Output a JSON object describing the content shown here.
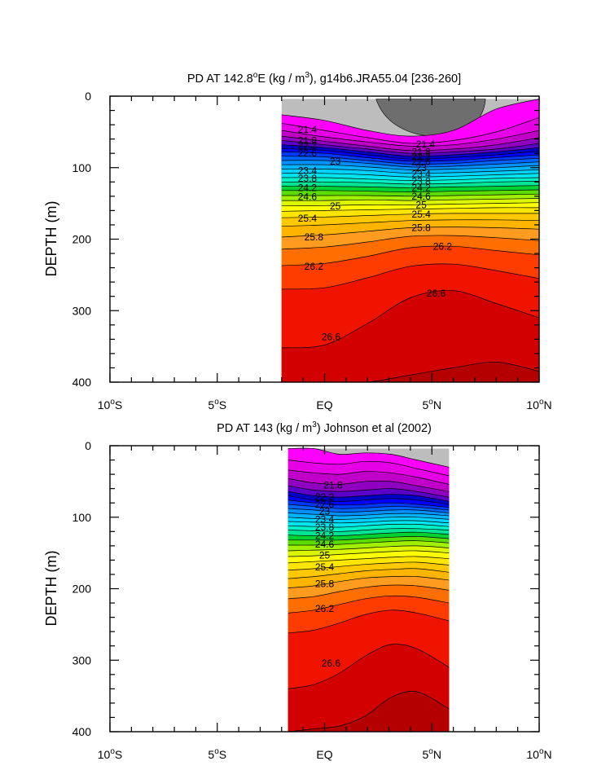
{
  "chart_data": [
    {
      "type": "heatmap",
      "title_pre": "PD AT 142.8",
      "title_sup": "o",
      "title_mid": "E (kg / m",
      "title_sup2": "3",
      "title_post": "), g14b6.JRA55.04 [236-260]",
      "ylabel": "DEPTH (m)",
      "xlim": [
        -10,
        10
      ],
      "ylim": [
        0,
        400
      ],
      "yticks": [
        "0",
        "100",
        "200",
        "300",
        "400"
      ],
      "xticks": [
        {
          "v": -10,
          "num": "10",
          "sup": "o",
          "hem": "S"
        },
        {
          "v": -5,
          "num": "5",
          "sup": "o",
          "hem": "S"
        },
        {
          "v": 0,
          "num": "EQ",
          "sup": "",
          "hem": ""
        },
        {
          "v": 5,
          "num": "5",
          "sup": "o",
          "hem": "N"
        },
        {
          "v": 10,
          "num": "10",
          "sup": "o",
          "hem": "N"
        }
      ],
      "lat_range": [
        -2,
        10
      ],
      "lat_points": [
        -2,
        0,
        2,
        4,
        6,
        8,
        10
      ],
      "isopycnals": [
        {
          "v": 21.0,
          "d": [
            4,
            4,
            4,
            4,
            4,
            4,
            4
          ]
        },
        {
          "v": 21.2,
          "d": [
            26,
            34,
            48,
            56,
            48,
            18,
            4
          ]
        },
        {
          "v": 21.4,
          "d": [
            38,
            48,
            58,
            66,
            62,
            50,
            30
          ]
        },
        {
          "v": 21.6,
          "d": [
            48,
            57,
            64,
            70,
            68,
            60,
            48
          ]
        },
        {
          "v": 21.8,
          "d": [
            56,
            63,
            70,
            76,
            74,
            68,
            58
          ]
        },
        {
          "v": 22.0,
          "d": [
            62,
            68,
            74,
            80,
            78,
            74,
            66
          ]
        },
        {
          "v": 22.2,
          "d": [
            68,
            72,
            78,
            84,
            82,
            78,
            72
          ]
        },
        {
          "v": 22.4,
          "d": [
            73,
            76,
            82,
            88,
            86,
            82,
            77
          ]
        },
        {
          "v": 22.6,
          "d": [
            78,
            80,
            86,
            91,
            90,
            86,
            82
          ]
        },
        {
          "v": 22.8,
          "d": [
            84,
            85,
            90,
            95,
            94,
            90,
            87
          ]
        },
        {
          "v": 23.0,
          "d": [
            90,
            90,
            94,
            99,
            98,
            95,
            92
          ]
        },
        {
          "v": 23.2,
          "d": [
            96,
            96,
            99,
            103,
            102,
            100,
            97
          ]
        },
        {
          "v": 23.4,
          "d": [
            102,
            102,
            104,
            108,
            107,
            105,
            103
          ]
        },
        {
          "v": 23.6,
          "d": [
            108,
            108,
            110,
            113,
            112,
            110,
            108
          ]
        },
        {
          "v": 23.8,
          "d": [
            114,
            114,
            116,
            118,
            117,
            115,
            114
          ]
        },
        {
          "v": 24.0,
          "d": [
            120,
            120,
            121,
            123,
            122,
            120,
            119
          ]
        },
        {
          "v": 24.2,
          "d": [
            126,
            126,
            127,
            128,
            127,
            126,
            125
          ]
        },
        {
          "v": 24.4,
          "d": [
            132,
            132,
            133,
            134,
            133,
            132,
            131
          ]
        },
        {
          "v": 24.6,
          "d": [
            139,
            139,
            139,
            140,
            139,
            138,
            137
          ]
        },
        {
          "v": 24.8,
          "d": [
            146,
            146,
            145,
            146,
            145,
            144,
            143
          ]
        },
        {
          "v": 25.0,
          "d": [
            153,
            153,
            152,
            152,
            151,
            150,
            149
          ]
        },
        {
          "v": 25.2,
          "d": [
            161,
            160,
            159,
            158,
            157,
            156,
            156
          ]
        },
        {
          "v": 25.4,
          "d": [
            170,
            169,
            167,
            165,
            164,
            164,
            164
          ]
        },
        {
          "v": 25.6,
          "d": [
            182,
            180,
            177,
            174,
            173,
            173,
            174
          ]
        },
        {
          "v": 25.8,
          "d": [
            197,
            194,
            189,
            184,
            183,
            184,
            186
          ]
        },
        {
          "v": 26.0,
          "d": [
            214,
            211,
            204,
            196,
            195,
            198,
            202
          ]
        },
        {
          "v": 26.2,
          "d": [
            237,
            234,
            224,
            212,
            210,
            216,
            222
          ]
        },
        {
          "v": 26.4,
          "d": [
            270,
            268,
            254,
            238,
            235,
            244,
            255
          ]
        },
        {
          "v": 26.6,
          "d": [
            352,
            348,
            318,
            282,
            272,
            290,
            310
          ]
        },
        {
          "v": 26.8,
          "d": [
            400,
            400,
            400,
            390,
            380,
            372,
            385
          ]
        }
      ],
      "contour_labels": [
        {
          "text": "21.4",
          "lat": -0.8,
          "depth": 47
        },
        {
          "text": "21.8",
          "lat": -0.8,
          "depth": 62
        },
        {
          "text": "22.2",
          "lat": -0.8,
          "depth": 69
        },
        {
          "text": "22.6",
          "lat": -0.8,
          "depth": 80
        },
        {
          "text": "23",
          "lat": 0.5,
          "depth": 91
        },
        {
          "text": "23.4",
          "lat": -0.8,
          "depth": 104
        },
        {
          "text": "23.8",
          "lat": -0.8,
          "depth": 115
        },
        {
          "text": "24.2",
          "lat": -0.8,
          "depth": 128
        },
        {
          "text": "24.6",
          "lat": -0.8,
          "depth": 141
        },
        {
          "text": "25",
          "lat": 0.5,
          "depth": 154
        },
        {
          "text": "25.4",
          "lat": -0.8,
          "depth": 171
        },
        {
          "text": "25.8",
          "lat": -0.5,
          "depth": 197
        },
        {
          "text": "26.2",
          "lat": -0.5,
          "depth": 238
        },
        {
          "text": "26.6",
          "lat": 0.3,
          "depth": 337
        },
        {
          "text": "21.4",
          "lat": 4.7,
          "depth": 67
        },
        {
          "text": "21.8",
          "lat": 4.5,
          "depth": 78
        },
        {
          "text": "22.2",
          "lat": 4.5,
          "depth": 85
        },
        {
          "text": "22.6",
          "lat": 4.5,
          "depth": 92
        },
        {
          "text": "23",
          "lat": 4.5,
          "depth": 100
        },
        {
          "text": "23.4",
          "lat": 4.5,
          "depth": 109
        },
        {
          "text": "23.8",
          "lat": 4.5,
          "depth": 119
        },
        {
          "text": "24.2",
          "lat": 4.5,
          "depth": 128
        },
        {
          "text": "24.6",
          "lat": 4.5,
          "depth": 140
        },
        {
          "text": "25",
          "lat": 4.5,
          "depth": 152
        },
        {
          "text": "25.4",
          "lat": 4.5,
          "depth": 165
        },
        {
          "text": "25.8",
          "lat": 4.5,
          "depth": 184
        },
        {
          "text": "26.2",
          "lat": 5.5,
          "depth": 210
        },
        {
          "text": "26.6",
          "lat": 5.2,
          "depth": 276
        }
      ]
    },
    {
      "type": "heatmap",
      "title_pre": "PD AT 143 (kg / m",
      "title_sup2": "3",
      "title_post": ") Johnson et al (2002)",
      "ylabel": "DEPTH (m)",
      "xlim": [
        -10,
        10
      ],
      "ylim": [
        0,
        400
      ],
      "yticks": [
        "0",
        "100",
        "200",
        "300",
        "400"
      ],
      "xticks": [
        {
          "v": -10,
          "num": "10",
          "sup": "o",
          "hem": "S"
        },
        {
          "v": -5,
          "num": "5",
          "sup": "o",
          "hem": "S"
        },
        {
          "v": 0,
          "num": "EQ",
          "sup": "",
          "hem": ""
        },
        {
          "v": 5,
          "num": "5",
          "sup": "o",
          "hem": "N"
        },
        {
          "v": 10,
          "num": "10",
          "sup": "o",
          "hem": "N"
        }
      ],
      "lat_range": [
        -1.7,
        5.8
      ],
      "lat_points": [
        -1.7,
        -0.5,
        0.7,
        1.9,
        3.1,
        4.3,
        5.8
      ],
      "isopycnals": [
        {
          "v": 21.0,
          "d": [
            4,
            4,
            4,
            4,
            4,
            4,
            4
          ]
        },
        {
          "v": 21.2,
          "d": [
            4,
            4,
            12,
            10,
            12,
            20,
            30
          ]
        },
        {
          "v": 21.4,
          "d": [
            20,
            24,
            26,
            22,
            24,
            32,
            42
          ]
        },
        {
          "v": 21.6,
          "d": [
            34,
            38,
            40,
            36,
            38,
            44,
            54
          ]
        },
        {
          "v": 21.8,
          "d": [
            46,
            52,
            54,
            50,
            50,
            56,
            64
          ]
        },
        {
          "v": 22.0,
          "d": [
            56,
            62,
            64,
            62,
            60,
            64,
            72
          ]
        },
        {
          "v": 22.2,
          "d": [
            64,
            70,
            72,
            70,
            68,
            70,
            78
          ]
        },
        {
          "v": 22.4,
          "d": [
            70,
            76,
            78,
            76,
            74,
            76,
            82
          ]
        },
        {
          "v": 22.6,
          "d": [
            76,
            80,
            83,
            82,
            80,
            82,
            86
          ]
        },
        {
          "v": 22.8,
          "d": [
            82,
            85,
            88,
            87,
            85,
            86,
            90
          ]
        },
        {
          "v": 23.0,
          "d": [
            88,
            90,
            93,
            92,
            90,
            90,
            94
          ]
        },
        {
          "v": 23.2,
          "d": [
            94,
            96,
            98,
            97,
            95,
            95,
            98
          ]
        },
        {
          "v": 23.4,
          "d": [
            100,
            102,
            103,
            102,
            100,
            100,
            103
          ]
        },
        {
          "v": 23.6,
          "d": [
            106,
            107,
            108,
            107,
            105,
            105,
            108
          ]
        },
        {
          "v": 23.8,
          "d": [
            112,
            113,
            114,
            112,
            110,
            110,
            113
          ]
        },
        {
          "v": 24.0,
          "d": [
            118,
            119,
            120,
            118,
            116,
            116,
            118
          ]
        },
        {
          "v": 24.2,
          "d": [
            125,
            126,
            126,
            124,
            122,
            121,
            124
          ]
        },
        {
          "v": 24.4,
          "d": [
            132,
            132,
            132,
            130,
            128,
            127,
            130
          ]
        },
        {
          "v": 24.6,
          "d": [
            139,
            139,
            138,
            136,
            134,
            133,
            136
          ]
        },
        {
          "v": 24.8,
          "d": [
            147,
            146,
            145,
            143,
            141,
            140,
            143
          ]
        },
        {
          "v": 25.0,
          "d": [
            155,
            154,
            152,
            150,
            148,
            147,
            150
          ]
        },
        {
          "v": 25.2,
          "d": [
            164,
            162,
            160,
            158,
            156,
            155,
            158
          ]
        },
        {
          "v": 25.4,
          "d": [
            174,
            172,
            169,
            166,
            164,
            163,
            167
          ]
        },
        {
          "v": 25.6,
          "d": [
            186,
            183,
            179,
            175,
            173,
            172,
            177
          ]
        },
        {
          "v": 25.8,
          "d": [
            199,
            196,
            190,
            185,
            183,
            183,
            188
          ]
        },
        {
          "v": 26.0,
          "d": [
            214,
            211,
            204,
            198,
            195,
            196,
            202
          ]
        },
        {
          "v": 26.2,
          "d": [
            234,
            230,
            222,
            214,
            210,
            212,
            220
          ]
        },
        {
          "v": 26.4,
          "d": [
            262,
            258,
            248,
            236,
            230,
            234,
            245
          ]
        },
        {
          "v": 26.6,
          "d": [
            340,
            334,
            318,
            294,
            278,
            284,
            310
          ]
        },
        {
          "v": 26.8,
          "d": [
            400,
            396,
            392,
            378,
            352,
            344,
            368
          ]
        }
      ],
      "contour_labels": [
        {
          "text": "21.8",
          "lat": 0.4,
          "depth": 55
        },
        {
          "text": "22.2",
          "lat": 0.0,
          "depth": 72
        },
        {
          "text": "22.6",
          "lat": 0.0,
          "depth": 82
        },
        {
          "text": "23",
          "lat": 0.0,
          "depth": 92
        },
        {
          "text": "23.4",
          "lat": 0.0,
          "depth": 103
        },
        {
          "text": "23.8",
          "lat": 0.0,
          "depth": 114
        },
        {
          "text": "24.2",
          "lat": 0.0,
          "depth": 126
        },
        {
          "text": "24.6",
          "lat": 0.0,
          "depth": 138
        },
        {
          "text": "25",
          "lat": 0.0,
          "depth": 153
        },
        {
          "text": "25.4",
          "lat": 0.0,
          "depth": 170
        },
        {
          "text": "25.8",
          "lat": 0.0,
          "depth": 193
        },
        {
          "text": "26.2",
          "lat": 0.0,
          "depth": 228
        },
        {
          "text": "26.6",
          "lat": 0.3,
          "depth": 304
        }
      ]
    }
  ]
}
